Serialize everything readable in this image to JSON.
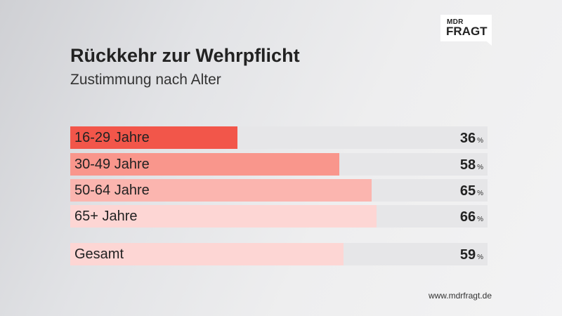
{
  "logo": {
    "line1": "MDR",
    "line2": "FRAGT"
  },
  "chart_data": {
    "type": "bar",
    "orientation": "horizontal",
    "title": "Rückkehr zur Wehrpflicht",
    "subtitle": "Zustimmung nach Alter",
    "unit": "%",
    "xlim": [
      0,
      100
    ],
    "categories": [
      "16-29 Jahre",
      "30-49 Jahre",
      "50-64 Jahre",
      "65+ Jahre",
      "Gesamt"
    ],
    "values": [
      36,
      58,
      65,
      66,
      59
    ],
    "bar_colors": [
      "#f2564a",
      "#f9968c",
      "#fbb5af",
      "#fdd6d4",
      "#fdd6d4"
    ],
    "track_color": "#e6e6e8",
    "grid": false,
    "legend": "none"
  },
  "footer": {
    "url": "www.mdrfragt.de"
  }
}
